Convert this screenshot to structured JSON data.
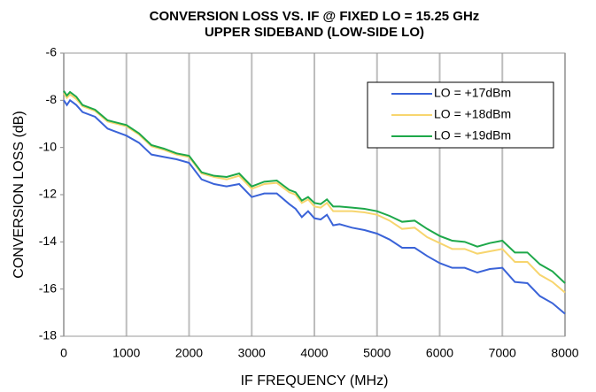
{
  "chart_data": {
    "type": "line",
    "title": "CONVERSION LOSS VS. IF @ FIXED LO = 15.25 GHz",
    "subtitle": "UPPER SIDEBAND (LOW-SIDE LO)",
    "x_label": "IF FREQUENCY (MHz)",
    "y_label": "CONVERSION LOSS (dB)",
    "x": [
      0,
      50,
      100,
      200,
      300,
      500,
      700,
      1000,
      1200,
      1400,
      1600,
      1800,
      2000,
      2200,
      2400,
      2600,
      2800,
      3000,
      3200,
      3400,
      3600,
      3700,
      3800,
      3900,
      4000,
      4100,
      4200,
      4300,
      4400,
      4600,
      4800,
      5000,
      5200,
      5400,
      5600,
      5800,
      6000,
      6200,
      6400,
      6600,
      6800,
      7000,
      7200,
      7400,
      7600,
      7800,
      8000
    ],
    "series": [
      {
        "name": "LO = +17dBm",
        "color": "#3a63d8",
        "values": [
          -8.0,
          -8.2,
          -8.0,
          -8.2,
          -8.5,
          -8.7,
          -9.2,
          -9.5,
          -9.8,
          -10.3,
          -10.4,
          -10.5,
          -10.65,
          -11.35,
          -11.55,
          -11.65,
          -11.55,
          -12.1,
          -11.95,
          -11.95,
          -12.4,
          -12.6,
          -12.95,
          -12.7,
          -13.0,
          -13.05,
          -12.85,
          -13.3,
          -13.25,
          -13.4,
          -13.5,
          -13.65,
          -13.9,
          -14.25,
          -14.25,
          -14.6,
          -14.9,
          -15.1,
          -15.1,
          -15.3,
          -15.15,
          -15.1,
          -15.7,
          -15.75,
          -16.3,
          -16.6,
          -17.05
        ]
      },
      {
        "name": "LO = +18dBm",
        "color": "#f7d56e",
        "values": [
          -7.7,
          -7.9,
          -7.75,
          -7.95,
          -8.25,
          -8.45,
          -8.9,
          -9.1,
          -9.45,
          -9.95,
          -10.1,
          -10.3,
          -10.4,
          -11.1,
          -11.25,
          -11.35,
          -11.2,
          -11.75,
          -11.55,
          -11.5,
          -11.9,
          -12.0,
          -12.35,
          -12.2,
          -12.5,
          -12.55,
          -12.35,
          -12.7,
          -12.7,
          -12.7,
          -12.75,
          -12.85,
          -13.1,
          -13.45,
          -13.4,
          -13.8,
          -14.05,
          -14.3,
          -14.3,
          -14.5,
          -14.4,
          -14.3,
          -14.85,
          -14.85,
          -15.4,
          -15.7,
          -16.15
        ]
      },
      {
        "name": "LO = +19dBm",
        "color": "#1ea84a",
        "values": [
          -7.6,
          -7.8,
          -7.65,
          -7.85,
          -8.2,
          -8.4,
          -8.85,
          -9.05,
          -9.4,
          -9.9,
          -10.05,
          -10.25,
          -10.35,
          -11.05,
          -11.2,
          -11.25,
          -11.1,
          -11.65,
          -11.45,
          -11.4,
          -11.8,
          -11.9,
          -12.25,
          -12.1,
          -12.35,
          -12.4,
          -12.2,
          -12.5,
          -12.5,
          -12.55,
          -12.6,
          -12.7,
          -12.9,
          -13.15,
          -13.1,
          -13.45,
          -13.75,
          -13.95,
          -14.0,
          -14.2,
          -14.05,
          -13.95,
          -14.45,
          -14.45,
          -14.95,
          -15.25,
          -15.75
        ]
      }
    ],
    "xlim": [
      0,
      8000
    ],
    "xticks": [
      0,
      1000,
      2000,
      3000,
      4000,
      5000,
      6000,
      7000,
      8000
    ],
    "ylim": [
      -18,
      -6
    ],
    "yticks": [
      -18,
      -16,
      -14,
      -12,
      -10,
      -8,
      -6
    ],
    "grid": "x",
    "legend": "upper right"
  }
}
